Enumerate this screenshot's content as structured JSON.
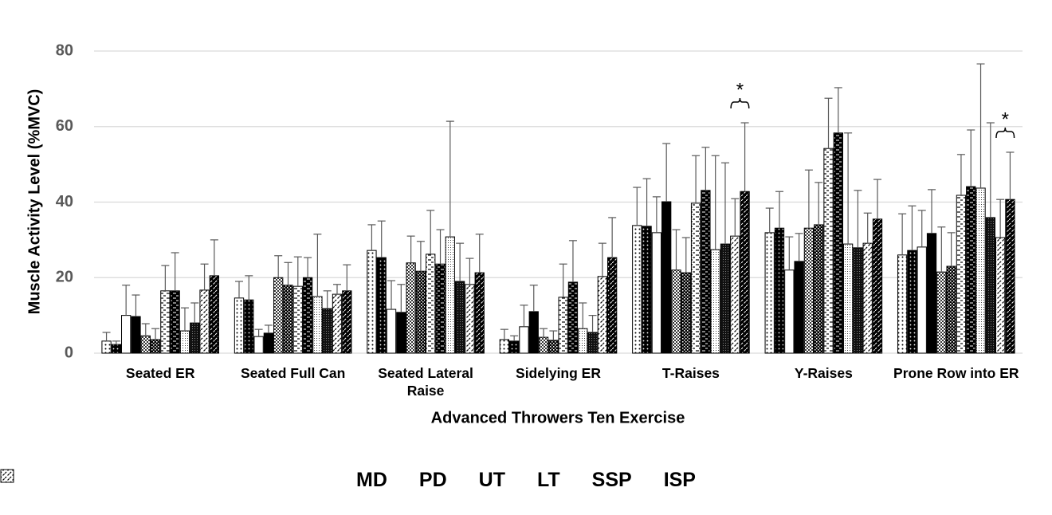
{
  "chart_data": {
    "type": "bar",
    "y_label": "Muscle Activity Level (%MVC)",
    "x_label": "Advanced Throwers Ten Exercise",
    "categories": [
      "Seated ER",
      "Seated Full Can",
      "Seated Lateral Raise",
      "Sidelying ER",
      "T-Raises",
      "Y-Raises",
      "Prone Row into ER"
    ],
    "ylim": [
      0,
      80
    ],
    "yticks": [
      0,
      20,
      40,
      60,
      80
    ],
    "grid": true,
    "legend": "bottom",
    "series": [
      {
        "name": "MD",
        "color": "#ffffff",
        "pattern": "dots",
        "values": [
          3.2,
          14.6,
          27.2,
          3.6,
          33.8,
          31.9,
          26
        ],
        "errors": [
          2.3,
          4.4,
          6.8,
          2.7,
          10.1,
          6.5,
          10.9
        ]
      },
      {
        "color": "#000000",
        "pattern": "dots",
        "values": [
          2.3,
          14.1,
          25.3,
          3.2,
          33.6,
          33.1,
          27.2
        ],
        "errors": [
          0.9,
          6.4,
          9.7,
          1.4,
          12.6,
          9.7,
          11.8
        ]
      },
      {
        "name": "PD",
        "color": "#ffffff",
        "pattern": "none",
        "values": [
          10,
          4.4,
          11.6,
          7,
          31.9,
          22,
          28.1
        ],
        "errors": [
          8,
          1.9,
          7.6,
          5.7,
          9.5,
          8.8,
          9.7
        ]
      },
      {
        "color": "#000000",
        "pattern": "none",
        "values": [
          9.7,
          5.3,
          10.8,
          11,
          40.1,
          24.3,
          31.7
        ],
        "errors": [
          5.7,
          2.1,
          7.4,
          7,
          15.4,
          7.4,
          11.6
        ]
      },
      {
        "name": "UT",
        "color": "#ffffff",
        "pattern": "checker",
        "values": [
          4.6,
          20,
          23.9,
          4.2,
          22,
          33.1,
          21.5
        ],
        "errors": [
          3.2,
          5.8,
          7.1,
          2.3,
          10.7,
          15.4,
          11.9
        ]
      },
      {
        "color": "#000000",
        "pattern": "checker",
        "values": [
          3.6,
          18,
          21.7,
          3.4,
          21.3,
          34,
          23
        ],
        "errors": [
          2.9,
          6,
          7.9,
          2.5,
          9.3,
          11.2,
          8.9
        ]
      },
      {
        "name": "LT",
        "color": "#ffffff",
        "pattern": "dash",
        "values": [
          16.5,
          17.7,
          26.2,
          14.8,
          39.7,
          54.2,
          41.8
        ],
        "errors": [
          6.7,
          7.8,
          11.6,
          8.8,
          12.6,
          13.3,
          10.8
        ]
      },
      {
        "color": "#000000",
        "pattern": "dash",
        "values": [
          16.5,
          20,
          23.6,
          18.8,
          43.1,
          58.3,
          44.1
        ],
        "errors": [
          10.1,
          5.3,
          9.1,
          11,
          11.4,
          12,
          15
        ]
      },
      {
        "name": "SSP",
        "color": "#ffffff",
        "pattern": "fine",
        "values": [
          5.9,
          15,
          30.8,
          6.5,
          27.4,
          28.9,
          43.7
        ],
        "errors": [
          6.1,
          16.5,
          30.6,
          6.8,
          24.9,
          29.4,
          32.9
        ]
      },
      {
        "color": "#000000",
        "pattern": "fine",
        "values": [
          8,
          11.8,
          19,
          5.5,
          28.9,
          27.9,
          35.9
        ],
        "errors": [
          5.3,
          4.7,
          10.1,
          4.5,
          21.5,
          15.2,
          25.1
        ]
      },
      {
        "name": "ISP",
        "color": "#ffffff",
        "pattern": "diag",
        "values": [
          16.7,
          15.6,
          18.2,
          20.3,
          31,
          29.1,
          30.6
        ],
        "errors": [
          6.9,
          2.6,
          6.9,
          8.8,
          9.9,
          8,
          10.1
        ]
      },
      {
        "color": "#000000",
        "pattern": "diag",
        "values": [
          20.5,
          16.5,
          21.3,
          25.3,
          42.8,
          35.5,
          40.7
        ],
        "errors": [
          9.5,
          6.9,
          10.2,
          10.6,
          18.2,
          10.5,
          12.5
        ]
      }
    ],
    "annotations": [
      {
        "text": "*",
        "category": 4,
        "series": [
          10,
          11
        ]
      },
      {
        "text": "*",
        "category": 6,
        "series": [
          10,
          11
        ]
      }
    ]
  }
}
